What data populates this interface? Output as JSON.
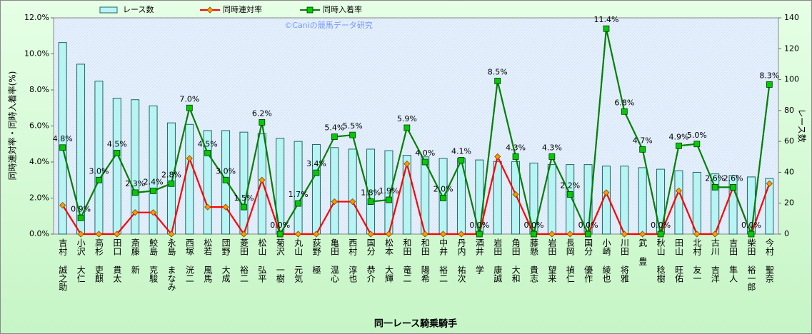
{
  "chart_data": {
    "type": "combo",
    "x_label": "同一レース騎乗騎手",
    "y_label": "同時連対率・同時入着率(%)",
    "y2_label": "レース数",
    "watermark": "©Caniの競馬データ研究",
    "legend": "top",
    "categories": [
      "吉村 誠之助",
      "小沢 大仁",
      "高杉 吏麒",
      "田口 貫太",
      "斎藤 新",
      "鮫島 克駿",
      "永島 まなみ",
      "西塚 洸二",
      "松若 風馬",
      "団野 大成",
      "菱田 裕二",
      "松山 弘平",
      "菊沢 一樹",
      "丸山 元気",
      "荻野 極",
      "亀田 温心",
      "西村 淳也",
      "国分 恭介",
      "松本 大輝",
      "和田 竜二",
      "和田 陽希",
      "中井 裕二",
      "丹内 祐次",
      "酒井 学",
      "岩田 康誠",
      "角田 大和",
      "藤懸 貴志",
      "岩田 望来",
      "長岡 禎仁",
      "国分 優作",
      "小崎 綾也",
      "川田 将雅",
      "武 豊",
      "秋山 稔樹",
      "田山 旺佑",
      "北村 友一",
      "古川 吉洋",
      "吉田 隼人",
      "柴田 裕一郎",
      "今村 聖奈"
    ],
    "series": [
      {
        "name": "レース数",
        "type": "bar",
        "axis": "y2",
        "color": "#b8f4f4",
        "values": [
          124,
          110,
          99,
          88,
          87,
          83,
          72,
          71,
          67,
          67,
          66,
          65,
          62,
          60,
          58,
          56,
          55,
          55,
          54,
          51,
          50,
          49,
          49,
          48,
          47,
          47,
          46,
          45,
          45,
          45,
          44,
          44,
          43,
          42,
          41,
          40,
          39,
          38,
          37,
          36
        ]
      },
      {
        "name": "同時連対率",
        "type": "line",
        "color": "#ff0000",
        "marker": "diamond",
        "marker_color": "#ff9900",
        "values": [
          1.6,
          0,
          0,
          0,
          1.2,
          1.2,
          0,
          4.2,
          1.5,
          1.5,
          0,
          3.0,
          0,
          0,
          0,
          1.8,
          1.8,
          0,
          0,
          3.9,
          0,
          0,
          0,
          0,
          4.3,
          2.2,
          0,
          0,
          0,
          0,
          2.3,
          0,
          0,
          0,
          2.4,
          0,
          0,
          2.6,
          0,
          2.8
        ]
      },
      {
        "name": "同時入着率",
        "type": "line",
        "color": "#008000",
        "marker": "square",
        "marker_color": "#00cc00",
        "values": [
          4.8,
          0.9,
          3.0,
          4.5,
          2.3,
          2.4,
          2.8,
          7.0,
          4.5,
          3.0,
          1.5,
          6.2,
          0.0,
          1.7,
          3.4,
          5.4,
          5.5,
          1.8,
          1.9,
          5.9,
          4.0,
          2.0,
          4.1,
          0.0,
          8.5,
          4.3,
          0.0,
          4.3,
          2.2,
          0.0,
          11.4,
          6.8,
          4.7,
          0.0,
          4.9,
          5.0,
          2.6,
          2.6,
          0.0,
          8.3
        ],
        "value_labels": [
          "4.8%",
          "0.9%",
          "3.0%",
          "4.5%",
          "2.3%",
          "2.4%",
          "2.8%",
          "7.0%",
          "4.5%",
          "3.0%",
          "1.5%",
          "6.2%",
          "0.0%",
          "1.7%",
          "3.4%",
          "5.4%",
          "5.5%",
          "1.8%",
          "1.9%",
          "5.9%",
          "4.0%",
          "2.0%",
          "4.1%",
          "0.0%",
          "8.5%",
          "4.3%",
          "0.0%",
          "4.3%",
          "2.2%",
          "0.0%",
          "11.4%",
          "6.8%",
          "4.7%",
          "0.0%",
          "4.9%",
          "5.0%",
          "2.6%",
          "2.6%",
          "0.0%",
          "8.3%"
        ]
      }
    ],
    "ylim": [
      0,
      12
    ],
    "yticks": [
      {
        "value": 0,
        "label": "0.0%"
      },
      {
        "value": 2,
        "label": "2.0%"
      },
      {
        "value": 4,
        "label": "4.0%"
      },
      {
        "value": 6,
        "label": "6.0%"
      },
      {
        "value": 8,
        "label": "8.0%"
      },
      {
        "value": 10,
        "label": "10.0%"
      },
      {
        "value": 12,
        "label": "12.0%"
      }
    ],
    "y2lim": [
      0,
      140
    ],
    "y2ticks": [
      0,
      20,
      40,
      60,
      80,
      100,
      120,
      140
    ]
  }
}
